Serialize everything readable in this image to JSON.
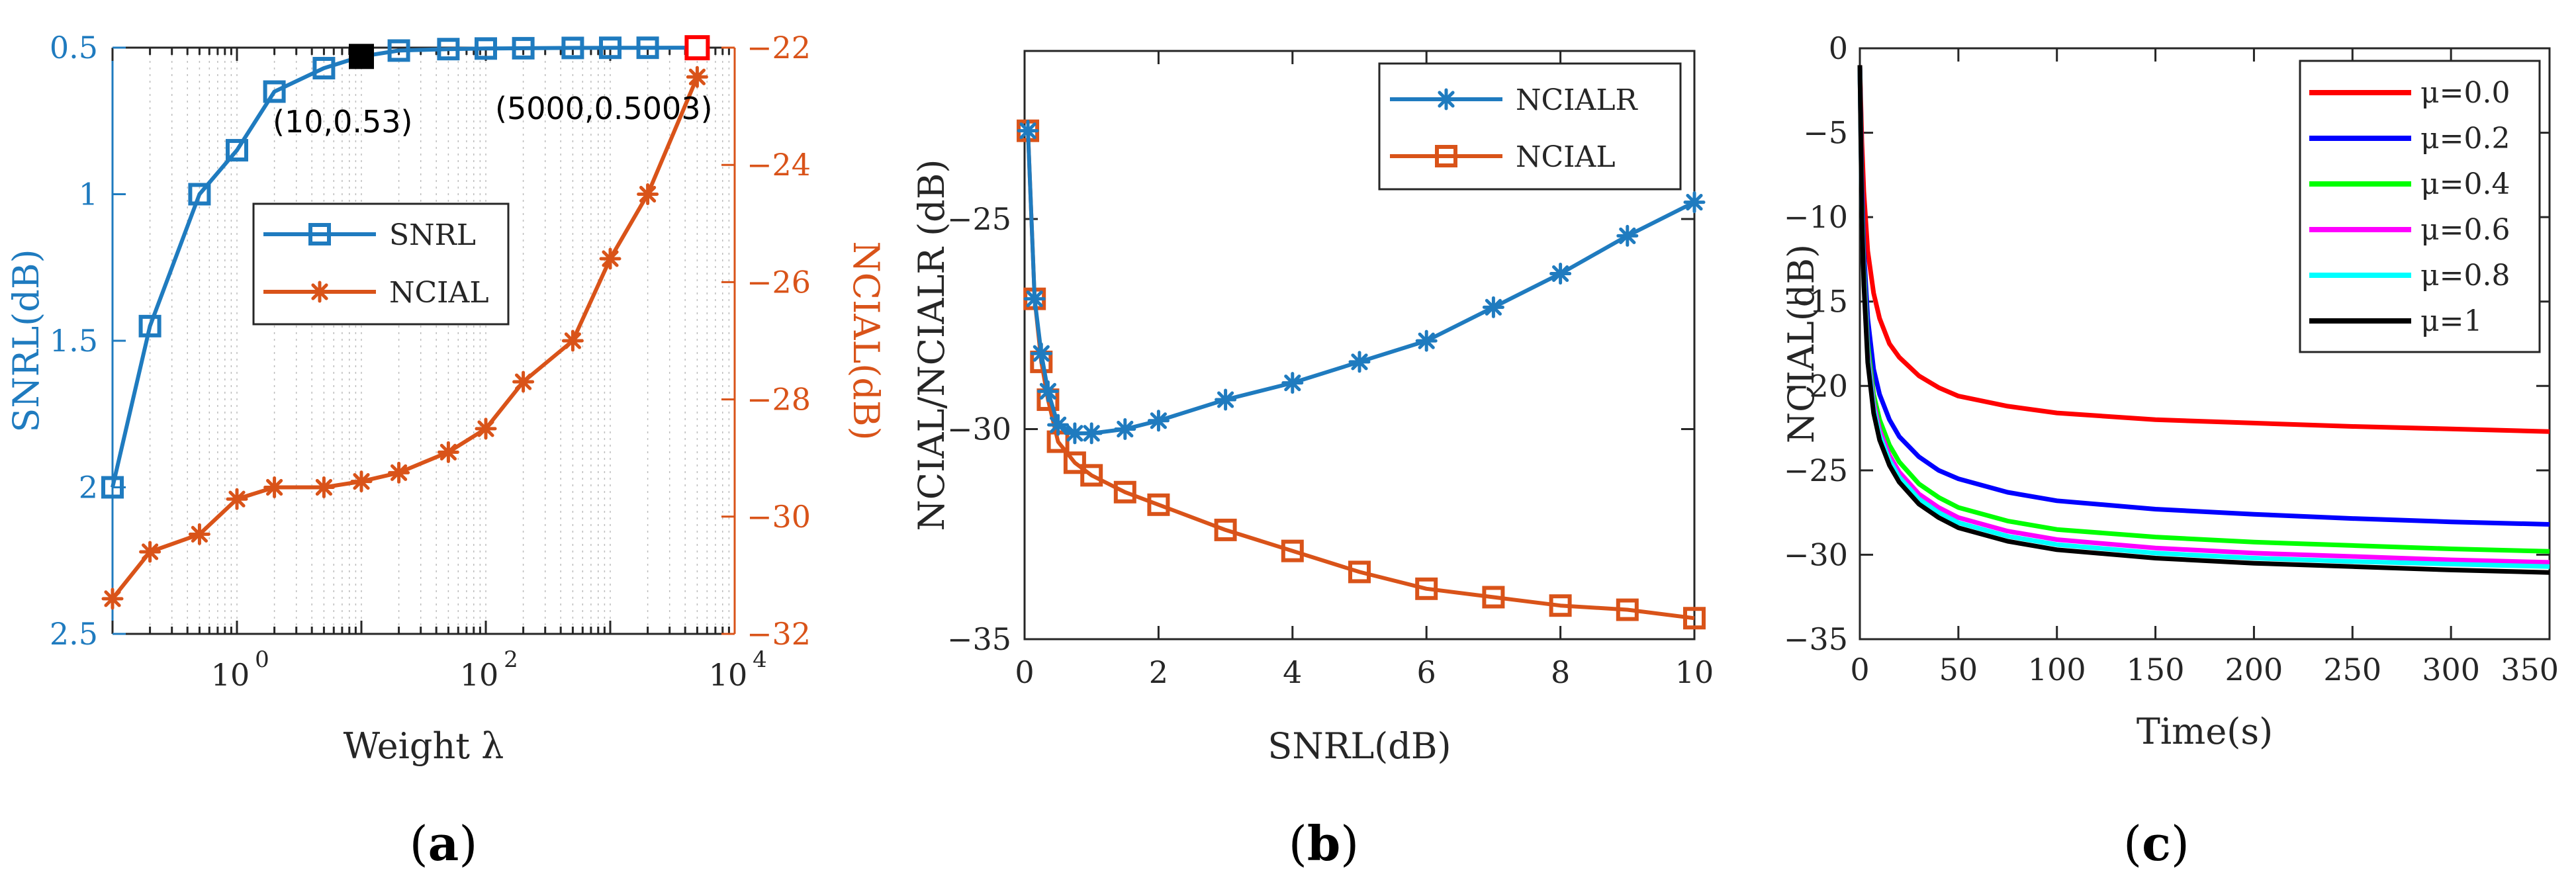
{
  "colors": {
    "blue": "#1f7bbf",
    "orange": "#d95319",
    "axis": "#262626",
    "red": "#ff0000",
    "black": "#000000",
    "c_red": "#ff0000",
    "c_blue": "#0000ff",
    "c_green": "#00ff00",
    "c_magenta": "#ff00ff",
    "c_cyan": "#00ffff",
    "c_black": "#000000"
  },
  "chart_data": [
    {
      "id": "a",
      "type": "line",
      "panel_label": "a",
      "xlabel": "Weight λ",
      "xscale": "log",
      "xlim": [
        0.1,
        10000
      ],
      "xticks": [
        {
          "value": 1,
          "base": "10",
          "exp": "0"
        },
        {
          "value": 100,
          "base": "10",
          "exp": "2"
        },
        {
          "value": 10000,
          "base": "10",
          "exp": "4"
        }
      ],
      "y_left": {
        "label": "SNRL(dB)",
        "lim": [
          0.5,
          2.5
        ],
        "reversed": true,
        "ticks": [
          0.5,
          1,
          1.5,
          2,
          2.5
        ],
        "ticklabels": [
          "0.5",
          "1",
          "1.5",
          "2",
          "2.5"
        ]
      },
      "y_right": {
        "label": "NCIAL(dB)",
        "lim": [
          -32,
          -22
        ],
        "ticks": [
          -22,
          -24,
          -26,
          -28,
          -30,
          -32
        ],
        "ticklabels": [
          "-22",
          "-24",
          "-26",
          "-28",
          "-30",
          "-32"
        ]
      },
      "series": [
        {
          "name": "SNRL",
          "axis": "left",
          "marker": "square",
          "x": [
            0.1,
            0.2,
            0.5,
            1,
            2,
            5,
            10,
            20,
            50,
            100,
            200,
            500,
            1000,
            2000,
            5000
          ],
          "values": [
            2.0,
            1.45,
            1.0,
            0.85,
            0.65,
            0.57,
            0.53,
            0.51,
            0.505,
            0.503,
            0.502,
            0.501,
            0.5005,
            0.5004,
            0.5003
          ]
        },
        {
          "name": "NCIAL",
          "axis": "right",
          "marker": "asterisk",
          "x": [
            0.1,
            0.2,
            0.5,
            1,
            2,
            5,
            10,
            20,
            50,
            100,
            200,
            500,
            1000,
            2000,
            5000
          ],
          "values": [
            -31.4,
            -30.6,
            -30.3,
            -29.7,
            -29.5,
            -29.5,
            -29.4,
            -29.25,
            -28.9,
            -28.5,
            -27.7,
            -27.0,
            -25.6,
            -24.5,
            -22.5
          ]
        }
      ],
      "highlights": [
        {
          "x": 10,
          "value": 0.53,
          "color": "black"
        },
        {
          "x": 5000,
          "value": 0.5003,
          "color": "red"
        }
      ],
      "annotations": [
        "(10,0.53)",
        "(5000,0.5003)"
      ],
      "legend": {
        "location": "center",
        "entries": [
          "SNRL",
          "NCIAL"
        ]
      }
    },
    {
      "id": "b",
      "type": "line",
      "panel_label": "b",
      "xlabel": "SNRL(dB)",
      "ylabel": "NCIAL/NCIALR (dB)",
      "xlim": [
        0,
        10
      ],
      "ylim": [
        -35,
        -21
      ],
      "xticks": [
        0,
        2,
        4,
        6,
        8,
        10
      ],
      "xticklabels": [
        "0",
        "2",
        "4",
        "6",
        "8",
        "10"
      ],
      "yticks": [
        -25,
        -30,
        -35
      ],
      "yticklabels": [
        "-25",
        "-30",
        "-35"
      ],
      "series": [
        {
          "name": "NCIALR",
          "marker": "asterisk",
          "x": [
            0.05,
            0.15,
            0.25,
            0.35,
            0.5,
            0.75,
            1.0,
            1.5,
            2.0,
            3.0,
            4.0,
            5.0,
            6.0,
            7.0,
            8.0,
            9.0,
            10.0
          ],
          "values": [
            -22.9,
            -26.9,
            -28.2,
            -29.1,
            -29.9,
            -30.1,
            -30.1,
            -30.0,
            -29.8,
            -29.3,
            -28.9,
            -28.4,
            -27.9,
            -27.1,
            -26.3,
            -25.4,
            -24.6
          ]
        },
        {
          "name": "NCIAL",
          "marker": "square",
          "x": [
            0.05,
            0.15,
            0.25,
            0.35,
            0.5,
            0.75,
            1.0,
            1.5,
            2.0,
            3.0,
            4.0,
            5.0,
            6.0,
            7.0,
            8.0,
            9.0,
            10.0
          ],
          "values": [
            -22.9,
            -26.9,
            -28.4,
            -29.3,
            -30.3,
            -30.8,
            -31.1,
            -31.5,
            -31.8,
            -32.4,
            -32.9,
            -33.4,
            -33.8,
            -34.0,
            -34.2,
            -34.3,
            -34.5
          ]
        }
      ],
      "legend": {
        "location": "top-right",
        "entries": [
          "NCIALR",
          "NCIAL"
        ]
      }
    },
    {
      "id": "c",
      "type": "line",
      "panel_label": "c",
      "xlabel": "Time(s)",
      "ylabel": "NCIAL(dB)",
      "xlim": [
        0,
        350
      ],
      "ylim": [
        -35,
        0
      ],
      "xticks": [
        0,
        50,
        100,
        150,
        200,
        250,
        300,
        350
      ],
      "xticklabels": [
        "0",
        "50",
        "100",
        "150",
        "200",
        "250",
        "300",
        "350"
      ],
      "yticks": [
        0,
        -5,
        -10,
        -15,
        -20,
        -25,
        -30,
        -35
      ],
      "yticklabels": [
        "0",
        "-5",
        "-10",
        "-15",
        "-20",
        "-25",
        "-30",
        "-35"
      ],
      "series": [
        {
          "name": "μ=0.0",
          "color": "c_red",
          "x": [
            0,
            1,
            2,
            4,
            7,
            10,
            15,
            20,
            30,
            40,
            50,
            75,
            100,
            150,
            200,
            250,
            300,
            350
          ],
          "values": [
            -1,
            -5.5,
            -8.5,
            -12,
            -14.5,
            -16,
            -17.5,
            -18.3,
            -19.4,
            -20.1,
            -20.6,
            -21.2,
            -21.6,
            -22.0,
            -22.2,
            -22.4,
            -22.55,
            -22.7
          ]
        },
        {
          "name": "μ=0.2",
          "color": "c_blue",
          "x": [
            0,
            1,
            2,
            4,
            7,
            10,
            15,
            20,
            30,
            40,
            50,
            75,
            100,
            150,
            200,
            250,
            300,
            350
          ],
          "values": [
            -1,
            -8,
            -12,
            -16,
            -19,
            -20.5,
            -22,
            -23,
            -24.2,
            -25,
            -25.5,
            -26.3,
            -26.8,
            -27.3,
            -27.6,
            -27.85,
            -28.05,
            -28.2
          ]
        },
        {
          "name": "μ=0.4",
          "color": "c_green",
          "x": [
            0,
            1,
            2,
            4,
            7,
            10,
            15,
            20,
            30,
            40,
            50,
            75,
            100,
            150,
            200,
            250,
            300,
            350
          ],
          "values": [
            -1,
            -9,
            -13,
            -17.5,
            -20.5,
            -22,
            -23.5,
            -24.5,
            -25.8,
            -26.6,
            -27.2,
            -28.0,
            -28.5,
            -28.95,
            -29.25,
            -29.45,
            -29.65,
            -29.8
          ]
        },
        {
          "name": "μ=0.6",
          "color": "c_magenta",
          "x": [
            0,
            1,
            2,
            4,
            7,
            10,
            15,
            20,
            30,
            40,
            50,
            75,
            100,
            150,
            200,
            250,
            300,
            350
          ],
          "values": [
            -1,
            -9.5,
            -13.5,
            -18,
            -21,
            -22.6,
            -24.1,
            -25.1,
            -26.4,
            -27.2,
            -27.8,
            -28.6,
            -29.1,
            -29.6,
            -29.9,
            -30.1,
            -30.3,
            -30.45
          ]
        },
        {
          "name": "μ=0.8",
          "color": "c_cyan",
          "x": [
            0,
            1,
            2,
            4,
            7,
            10,
            15,
            20,
            30,
            40,
            50,
            75,
            100,
            150,
            200,
            250,
            300,
            350
          ],
          "values": [
            -1,
            -9.8,
            -13.8,
            -18.3,
            -21.3,
            -22.9,
            -24.4,
            -25.4,
            -26.7,
            -27.5,
            -28.1,
            -28.9,
            -29.4,
            -29.9,
            -30.2,
            -30.4,
            -30.55,
            -30.7
          ]
        },
        {
          "name": "μ=1",
          "color": "c_black",
          "x": [
            0,
            1,
            2,
            4,
            7,
            10,
            15,
            20,
            30,
            40,
            50,
            75,
            100,
            150,
            200,
            250,
            300,
            350
          ],
          "values": [
            -1,
            -10,
            -14,
            -18.6,
            -21.6,
            -23.2,
            -24.7,
            -25.7,
            -27.0,
            -27.8,
            -28.4,
            -29.2,
            -29.7,
            -30.2,
            -30.5,
            -30.7,
            -30.9,
            -31.05
          ]
        }
      ],
      "legend": {
        "location": "top-right",
        "entries": [
          "μ=0.0",
          "μ=0.2",
          "μ=0.4",
          "μ=0.6",
          "μ=0.8",
          "μ=1"
        ]
      }
    }
  ]
}
